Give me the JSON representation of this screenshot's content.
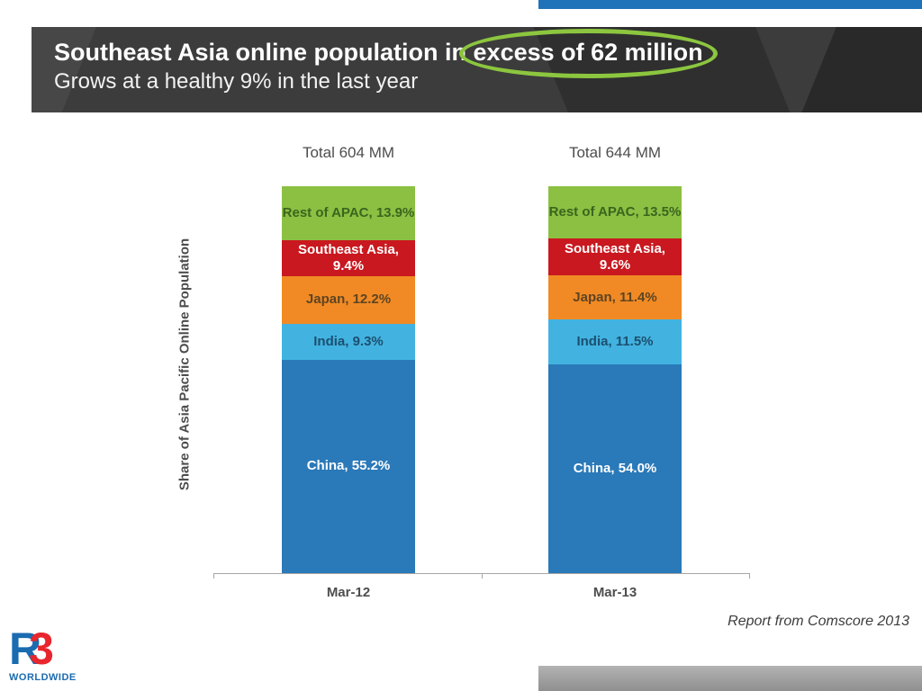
{
  "header": {
    "title_prefix": "Southeast Asia online population in",
    "title_highlight": "excess of 62 million",
    "subtitle": "Grows at a healthy 9% in the last year"
  },
  "footer": {
    "source": "Report from Comscore 2013",
    "logo_r": "R",
    "logo_3": "3",
    "logo_caption": "WORLDWIDE"
  },
  "theme": {
    "top_bar_color": "#2173b9",
    "bottom_bar_color": "#9e9e9e",
    "header_bg": "#3c3c3c",
    "ellipse_color": "#8cc63f",
    "logo_blue": "#1b6bb0",
    "logo_red": "#e8262d"
  },
  "chart_data": {
    "type": "bar",
    "subtype": "100-percent-stacked-column",
    "title": "",
    "xlabel": "",
    "ylabel": "Share of Asia Pacific Online Population",
    "ylim": [
      0,
      100
    ],
    "grid": false,
    "legend_position": "none",
    "categories": [
      "Mar-12",
      "Mar-13"
    ],
    "totals": [
      "Total 604 MM",
      "Total 644 MM"
    ],
    "series_order": "top-to-bottom",
    "label_format": "{name}, {value}%",
    "series": [
      {
        "name": "Rest of APAC",
        "values": [
          13.9,
          13.5
        ],
        "color": "#8bc043",
        "label_color": "#3c641e"
      },
      {
        "name": "Southeast Asia",
        "values": [
          9.4,
          9.6
        ],
        "color": "#c9181f",
        "label_color": "#ffffff"
      },
      {
        "name": "Japan",
        "values": [
          12.2,
          11.4
        ],
        "color": "#f18a24",
        "label_color": "#5d4423"
      },
      {
        "name": "India",
        "values": [
          9.3,
          11.5
        ],
        "color": "#42b3e0",
        "label_color": "#1c4f70"
      },
      {
        "name": "China",
        "values": [
          55.2,
          54.0
        ],
        "color": "#2a79b8",
        "label_color": "#ffffff"
      }
    ]
  }
}
